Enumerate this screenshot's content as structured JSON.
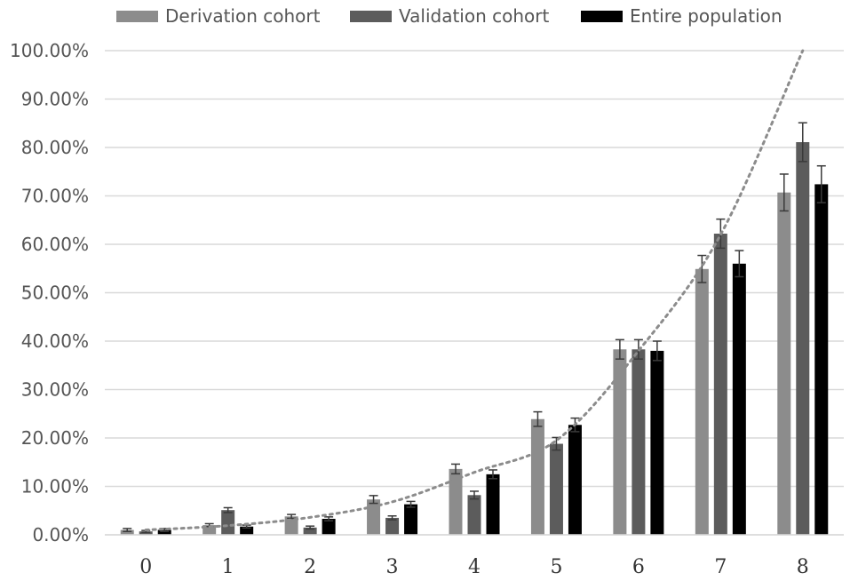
{
  "chart_data": {
    "type": "bar",
    "title": "",
    "xlabel": "",
    "ylabel": "",
    "categories": [
      "0",
      "1",
      "2",
      "3",
      "4",
      "5",
      "6",
      "7",
      "8"
    ],
    "ylim": [
      0,
      100
    ],
    "y_ticks": [
      "0.00%",
      "10.00%",
      "20.00%",
      "30.00%",
      "40.00%",
      "50.00%",
      "60.00%",
      "70.00%",
      "80.00%",
      "90.00%",
      "100.00%"
    ],
    "grid": true,
    "legend_position": "top",
    "series": [
      {
        "name": "Derivation cohort",
        "color": "#8c8c8c",
        "values": [
          1.0,
          2.0,
          3.8,
          7.3,
          13.6,
          23.9,
          38.3,
          54.9,
          70.7
        ],
        "errors": [
          0.3,
          0.3,
          0.4,
          0.8,
          1.0,
          1.5,
          2.0,
          2.8,
          3.8
        ]
      },
      {
        "name": "Validation cohort",
        "color": "#5c5c5c",
        "values": [
          0.7,
          5.1,
          1.5,
          3.5,
          8.2,
          18.8,
          38.3,
          62.2,
          81.1
        ],
        "errors": [
          0.2,
          0.5,
          0.3,
          0.4,
          0.8,
          1.3,
          2.0,
          3.0,
          4.0
        ]
      },
      {
        "name": "Entire population",
        "color": "#000000",
        "values": [
          1.0,
          1.7,
          3.3,
          6.3,
          12.5,
          22.7,
          38.0,
          56.0,
          72.4
        ],
        "errors": [
          0.3,
          0.3,
          0.4,
          0.6,
          0.9,
          1.4,
          2.0,
          2.7,
          3.8
        ]
      }
    ],
    "trendline": {
      "style": "dotted",
      "color": "#8c8c8c",
      "type": "exponential",
      "values": [
        1.0,
        1.9,
        3.6,
        6.8,
        12.9,
        19.5,
        38.0,
        62.0,
        100.0
      ]
    }
  }
}
